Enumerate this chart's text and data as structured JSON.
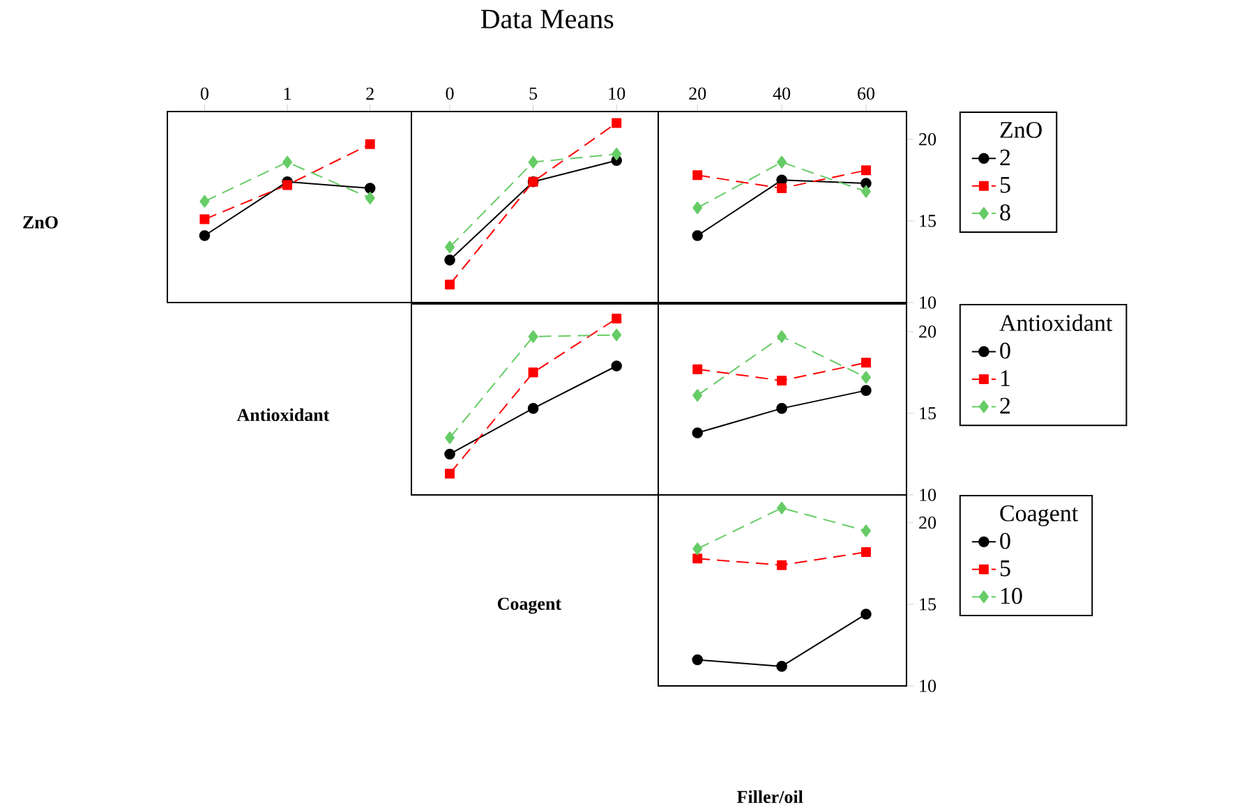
{
  "chart_data": [
    {
      "type": "line",
      "x": [
        0,
        1,
        2
      ],
      "xlim": [
        -0.45,
        2.5
      ],
      "xticks": [
        0,
        1,
        2
      ],
      "ylim": [
        10,
        21.7
      ],
      "tick_labels": "x",
      "ylabel": "ZnO",
      "series": [
        {
          "color": "#000000",
          "marker": "circle",
          "line_style": "solid",
          "values": [
            14.1,
            17.4,
            17.0
          ]
        },
        {
          "color": "#ff0000",
          "marker": "square",
          "line_style": "dashed",
          "values": [
            15.1,
            17.2,
            19.7
          ]
        },
        {
          "color": "#66cc66",
          "marker": "diamond",
          "line_style": "dashed",
          "values": [
            16.2,
            18.6,
            16.4
          ]
        }
      ]
    },
    {
      "type": "line",
      "title": "Data Means",
      "x": [
        0,
        5,
        10
      ],
      "xlim": [
        -2.3,
        12.5
      ],
      "xticks": [
        0,
        5,
        10
      ],
      "ylim": [
        10,
        21.7
      ],
      "tick_labels": "x",
      "series": [
        {
          "color": "#000000",
          "marker": "circle",
          "line_style": "solid",
          "values": [
            12.6,
            17.4,
            18.7
          ]
        },
        {
          "color": "#ff0000",
          "marker": "square",
          "line_style": "dashed",
          "values": [
            11.1,
            17.4,
            21.0
          ]
        },
        {
          "color": "#66cc66",
          "marker": "diamond",
          "line_style": "dashed",
          "values": [
            13.4,
            18.6,
            19.1
          ]
        }
      ]
    },
    {
      "type": "line",
      "x": [
        20,
        40,
        60
      ],
      "xlim": [
        10.7,
        69.6
      ],
      "xticks": [
        20,
        40,
        60
      ],
      "ylim": [
        10,
        21.7
      ],
      "yticks": [
        10,
        15,
        20
      ],
      "legend": "right",
      "legend_title": "ZnO",
      "series": [
        {
          "name": "2",
          "color": "#000000",
          "marker": "circle",
          "line_style": "solid",
          "values": [
            14.1,
            17.5,
            17.3
          ]
        },
        {
          "name": "5",
          "color": "#ff0000",
          "marker": "square",
          "line_style": "dashed",
          "values": [
            17.8,
            17.0,
            18.1
          ]
        },
        {
          "name": "8",
          "color": "#66cc66",
          "marker": "diamond",
          "line_style": "dashed",
          "values": [
            15.8,
            18.6,
            16.8
          ]
        }
      ]
    },
    {
      "type": "line",
      "x": [
        0,
        5,
        10
      ],
      "xlim": [
        -2.3,
        12.5
      ],
      "ylim": [
        10,
        21.7
      ],
      "tick_labels": false,
      "ylabel": "Antioxidant",
      "series": [
        {
          "color": "#000000",
          "marker": "circle",
          "line_style": "solid",
          "values": [
            12.5,
            15.3,
            17.9
          ]
        },
        {
          "color": "#ff0000",
          "marker": "square",
          "line_style": "dashed",
          "values": [
            11.3,
            17.5,
            20.8
          ]
        },
        {
          "color": "#66cc66",
          "marker": "diamond",
          "line_style": "dashed",
          "values": [
            13.5,
            19.7,
            19.8
          ]
        }
      ]
    },
    {
      "type": "line",
      "x": [
        20,
        40,
        60
      ],
      "xlim": [
        10.7,
        69.6
      ],
      "ylim": [
        10,
        21.7
      ],
      "yticks": [
        10,
        15,
        20
      ],
      "tick_labels": "y",
      "legend": "right",
      "legend_title": "Antioxidant",
      "series": [
        {
          "name": "0",
          "color": "#000000",
          "marker": "circle",
          "line_style": "solid",
          "values": [
            13.8,
            15.3,
            16.4
          ]
        },
        {
          "name": "1",
          "color": "#ff0000",
          "marker": "square",
          "line_style": "dashed",
          "values": [
            17.7,
            17.0,
            18.1
          ]
        },
        {
          "name": "2",
          "color": "#66cc66",
          "marker": "diamond",
          "line_style": "dashed",
          "values": [
            16.1,
            19.7,
            17.2
          ]
        }
      ]
    },
    {
      "type": "line",
      "x": [
        20,
        40,
        60
      ],
      "xlim": [
        10.7,
        69.6
      ],
      "ylim": [
        10,
        21.7
      ],
      "yticks": [
        10,
        15,
        20
      ],
      "tick_labels": "y",
      "ylabel": "Coagent",
      "xlabel": "Filler/oil",
      "legend": "right",
      "legend_title": "Coagent",
      "series": [
        {
          "name": "0",
          "color": "#000000",
          "marker": "circle",
          "line_style": "solid",
          "values": [
            11.6,
            11.2,
            14.4
          ]
        },
        {
          "name": "5",
          "color": "#ff0000",
          "marker": "square",
          "line_style": "dashed",
          "values": [
            17.8,
            17.4,
            18.2
          ]
        },
        {
          "name": "10",
          "color": "#66cc66",
          "marker": "diamond",
          "line_style": "dashed",
          "values": [
            18.4,
            20.9,
            19.5
          ]
        }
      ]
    }
  ]
}
